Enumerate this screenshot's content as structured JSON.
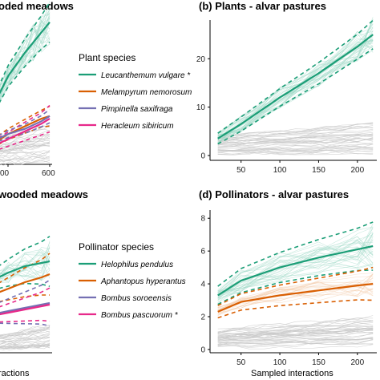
{
  "colors": {
    "green": "#1b9e77",
    "orange": "#d95f02",
    "purple": "#7570b3",
    "magenta": "#e7298a",
    "grey": "#c9c9c9",
    "light_green": "#9fd9c6"
  },
  "chart_data": [
    {
      "panel": "a",
      "type": "line",
      "title": "oded meadows",
      "xlabel": "",
      "ylabel": "",
      "x_tick_labels": [
        "00",
        "600"
      ],
      "series": [
        {
          "name": "Leucanthemum vulgare *",
          "color": "#1b9e77",
          "x": [
            0,
            200,
            400,
            600,
            700
          ],
          "y": [
            22,
            35,
            44,
            52,
            56
          ]
        },
        {
          "name": "Melampyrum nemorosum",
          "color": "#d95f02",
          "x": [
            0,
            200,
            400,
            600,
            700
          ],
          "y": [
            8,
            12,
            15,
            18,
            19
          ]
        },
        {
          "name": "Pimpinella saxifraga",
          "color": "#7570b3",
          "x": [
            0,
            200,
            400,
            600,
            700
          ],
          "y": [
            9,
            12,
            14,
            17,
            19
          ]
        },
        {
          "name": "Heracleum sibiricum",
          "color": "#e7298a",
          "x": [
            0,
            200,
            400,
            600,
            700
          ],
          "y": [
            7,
            10,
            13,
            16,
            18
          ]
        }
      ]
    },
    {
      "panel": "b",
      "type": "line",
      "title": "(b) Plants - alvar pastures",
      "xlabel": "",
      "ylabel": "",
      "x_ticks": [
        50,
        100,
        150,
        200
      ],
      "y_ticks": [
        0,
        10,
        20
      ],
      "xlim": [
        10,
        225
      ],
      "ylim": [
        -1,
        28
      ],
      "series": [
        {
          "name": "Leucanthemum vulgare *",
          "color": "#1b9e77",
          "x": [
            20,
            50,
            100,
            150,
            200,
            220
          ],
          "y": [
            3.5,
            6.5,
            12,
            17,
            22.5,
            25
          ]
        }
      ]
    },
    {
      "panel": "c",
      "type": "line",
      "title": "wooded meadows",
      "xlabel": "ractions",
      "ylabel": "",
      "series": [
        {
          "name": "Helophilus pendulus",
          "color": "#1b9e77",
          "x": [
            0,
            200,
            400,
            600,
            700
          ],
          "y": [
            4.5,
            5.0,
            5.4,
            5.6,
            5.7
          ]
        },
        {
          "name": "Aphantopus hyperantus",
          "color": "#d95f02",
          "x": [
            0,
            200,
            400,
            600,
            700
          ],
          "y": [
            3.6,
            4.0,
            4.4,
            4.7,
            4.9
          ]
        },
        {
          "name": "Bombus soroeensis",
          "color": "#7570b3",
          "x": [
            0,
            200,
            400,
            600,
            700
          ],
          "y": [
            2.4,
            2.6,
            2.8,
            3.0,
            3.1
          ]
        },
        {
          "name": "Bombus pascuorum *",
          "color": "#e7298a",
          "x": [
            0,
            200,
            400,
            600,
            700
          ],
          "y": [
            2.3,
            2.5,
            2.7,
            2.9,
            3.0
          ]
        }
      ]
    },
    {
      "panel": "d",
      "type": "line",
      "title": "(d) Pollinators - alvar pastures",
      "xlabel": "Sampled interactions",
      "ylabel": "",
      "x_ticks": [
        50,
        100,
        150,
        200
      ],
      "y_ticks": [
        0,
        2,
        4,
        6,
        8
      ],
      "xlim": [
        10,
        225
      ],
      "ylim": [
        -0.2,
        8.5
      ],
      "series": [
        {
          "name": "Helophilus pendulus",
          "color": "#1b9e77",
          "x": [
            20,
            50,
            100,
            150,
            200,
            220
          ],
          "y": [
            3.3,
            4.2,
            5.0,
            5.6,
            6.1,
            6.3
          ]
        },
        {
          "name": "Aphantopus hyperantus",
          "color": "#d95f02",
          "x": [
            20,
            50,
            100,
            150,
            200,
            220
          ],
          "y": [
            2.3,
            2.9,
            3.3,
            3.6,
            3.9,
            4.0
          ]
        }
      ]
    }
  ],
  "legends": {
    "plants": {
      "title": "Plant species",
      "items": [
        {
          "label": "Leucanthemum vulgare *",
          "color": "#1b9e77"
        },
        {
          "label": "Melampyrum nemorosum",
          "color": "#d95f02"
        },
        {
          "label": "Pimpinella saxifraga",
          "color": "#7570b3"
        },
        {
          "label": "Heracleum sibiricum",
          "color": "#e7298a"
        }
      ]
    },
    "pollinators": {
      "title": "Pollinator species",
      "items": [
        {
          "label": "Helophilus pendulus",
          "color": "#1b9e77"
        },
        {
          "label": "Aphantopus hyperantus",
          "color": "#d95f02"
        },
        {
          "label": "Bombus soroeensis",
          "color": "#7570b3"
        },
        {
          "label": "Bombus pascuorum *",
          "color": "#e7298a"
        }
      ]
    }
  }
}
